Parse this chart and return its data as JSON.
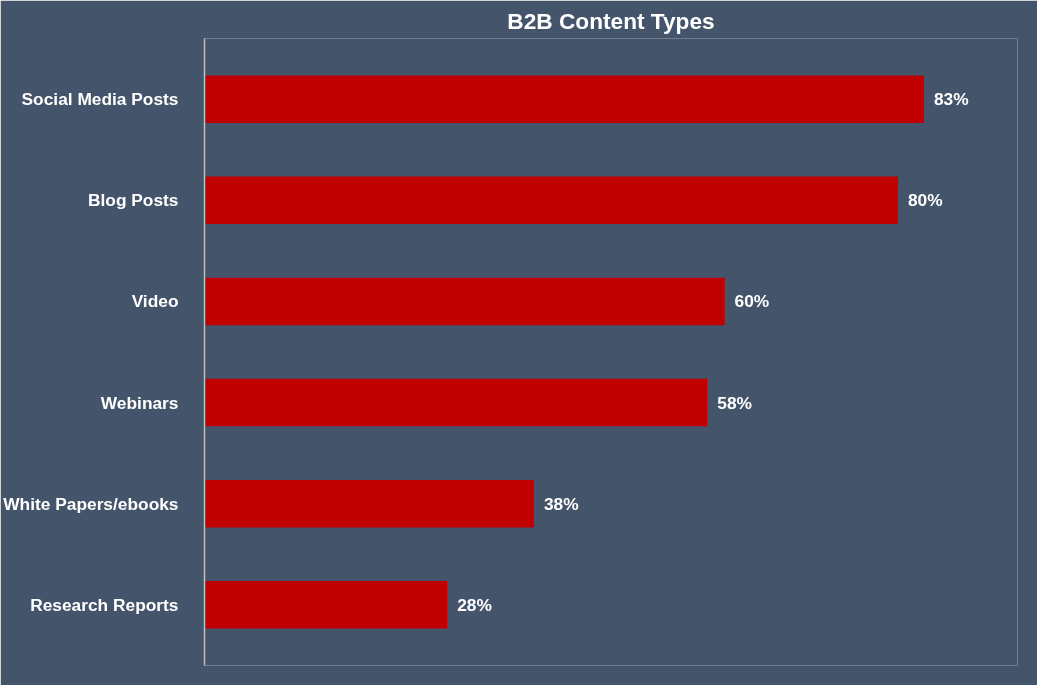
{
  "chart_data": {
    "type": "bar",
    "orientation": "horizontal",
    "title": "B2B Content Types",
    "categories": [
      "Social Media Posts",
      "Blog Posts",
      "Video",
      "Webinars",
      "White Papers/ebooks",
      "Research Reports"
    ],
    "values": [
      83,
      80,
      60,
      58,
      38,
      28
    ],
    "value_labels": [
      "83%",
      "80%",
      "60%",
      "58%",
      "38%",
      "28%"
    ],
    "color": "#c00000",
    "grid": false
  }
}
